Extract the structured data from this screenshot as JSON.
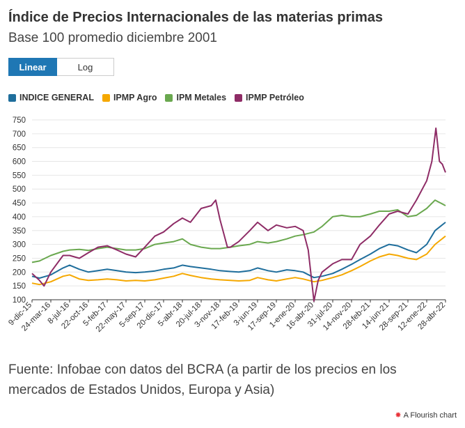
{
  "title": "Índice de Precios Internacionales de las materias primas",
  "subtitle": "Base 100 promedio diciembre 2001",
  "toggle": {
    "linear_label": "Linear",
    "log_label": "Log",
    "selected": "Linear"
  },
  "footnote": "Fuente: Infobae con datos del BCRA (a partir de los precios en los mercados de Estados Unidos, Europa y Asia)",
  "credit": {
    "label": "A Flourish chart",
    "logo_icon": "flourish-logo-icon"
  },
  "chart_data": {
    "type": "line",
    "ylim": [
      100,
      750
    ],
    "yticks": [
      100,
      150,
      200,
      250,
      300,
      350,
      400,
      450,
      500,
      550,
      600,
      650,
      700,
      750
    ],
    "x_tick_labels": [
      "9-dic-15",
      "24-mar-16",
      "8-jul-16",
      "22-oct-16",
      "5-feb-17",
      "22-may-17",
      "5-sep-17",
      "20-dic-17",
      "5-abr-18",
      "20-jul-18",
      "3-nov-18",
      "17-feb-19",
      "3-jun-19",
      "17-sep-19",
      "1-ene-20",
      "16-abr-20",
      "31-jul-20",
      "14-nov-20",
      "28-feb-21",
      "14-jun-21",
      "28-sep-21",
      "12-ene-22",
      "28-abr-22"
    ],
    "grid": true,
    "legend_position": "top-left",
    "series": [
      {
        "name": "INDICE GENERAL",
        "color": "#1f6e9c",
        "x": [
          "2015-12-09",
          "2016-01-20",
          "2016-03-24",
          "2016-06-01",
          "2016-07-08",
          "2016-09-01",
          "2016-10-22",
          "2016-12-15",
          "2017-02-05",
          "2017-04-01",
          "2017-05-22",
          "2017-07-15",
          "2017-09-05",
          "2017-11-01",
          "2017-12-20",
          "2018-02-15",
          "2018-04-05",
          "2018-05-20",
          "2018-07-20",
          "2018-09-15",
          "2018-11-03",
          "2019-01-01",
          "2019-02-17",
          "2019-04-20",
          "2019-06-03",
          "2019-08-01",
          "2019-09-17",
          "2019-11-15",
          "2020-01-01",
          "2020-02-15",
          "2020-04-16",
          "2020-06-01",
          "2020-07-31",
          "2020-09-20",
          "2020-11-14",
          "2021-01-01",
          "2021-02-28",
          "2021-04-20",
          "2021-06-14",
          "2021-08-01",
          "2021-09-28",
          "2021-11-15",
          "2022-01-12",
          "2022-02-28",
          "2022-04-28"
        ],
        "values": [
          185,
          178,
          190,
          215,
          225,
          210,
          200,
          205,
          210,
          205,
          200,
          198,
          200,
          204,
          210,
          215,
          225,
          220,
          215,
          210,
          205,
          202,
          200,
          205,
          215,
          205,
          200,
          208,
          205,
          200,
          180,
          185,
          195,
          210,
          228,
          245,
          265,
          285,
          300,
          295,
          280,
          270,
          300,
          350,
          380
        ]
      },
      {
        "name": "IPMP Agro",
        "color": "#f5a800",
        "x": [
          "2015-12-09",
          "2016-01-20",
          "2016-03-24",
          "2016-06-01",
          "2016-07-08",
          "2016-09-01",
          "2016-10-22",
          "2016-12-15",
          "2017-02-05",
          "2017-04-01",
          "2017-05-22",
          "2017-07-15",
          "2017-09-05",
          "2017-11-01",
          "2017-12-20",
          "2018-02-15",
          "2018-04-05",
          "2018-05-20",
          "2018-07-20",
          "2018-09-15",
          "2018-11-03",
          "2019-01-01",
          "2019-02-17",
          "2019-04-20",
          "2019-06-03",
          "2019-08-01",
          "2019-09-17",
          "2019-11-15",
          "2020-01-01",
          "2020-02-15",
          "2020-04-16",
          "2020-06-01",
          "2020-07-31",
          "2020-09-20",
          "2020-11-14",
          "2021-01-01",
          "2021-02-28",
          "2021-04-20",
          "2021-06-14",
          "2021-08-01",
          "2021-09-28",
          "2021-11-15",
          "2022-01-12",
          "2022-02-28",
          "2022-04-28"
        ],
        "values": [
          160,
          155,
          165,
          185,
          190,
          175,
          170,
          172,
          175,
          172,
          168,
          170,
          168,
          172,
          178,
          185,
          195,
          188,
          180,
          175,
          172,
          170,
          168,
          170,
          180,
          172,
          168,
          175,
          180,
          175,
          165,
          170,
          180,
          190,
          205,
          220,
          240,
          255,
          265,
          260,
          250,
          245,
          265,
          300,
          330
        ]
      },
      {
        "name": "IPM Metales",
        "color": "#6aa84f",
        "x": [
          "2015-12-09",
          "2016-01-20",
          "2016-03-24",
          "2016-06-01",
          "2016-07-08",
          "2016-09-01",
          "2016-10-22",
          "2016-12-15",
          "2017-02-05",
          "2017-04-01",
          "2017-05-22",
          "2017-07-15",
          "2017-09-05",
          "2017-11-01",
          "2017-12-20",
          "2018-02-15",
          "2018-04-05",
          "2018-05-20",
          "2018-07-20",
          "2018-09-15",
          "2018-11-03",
          "2019-01-01",
          "2019-02-17",
          "2019-04-20",
          "2019-06-03",
          "2019-08-01",
          "2019-09-17",
          "2019-11-15",
          "2020-01-01",
          "2020-02-15",
          "2020-04-16",
          "2020-06-01",
          "2020-07-31",
          "2020-09-20",
          "2020-11-14",
          "2021-01-01",
          "2021-02-28",
          "2021-04-20",
          "2021-06-14",
          "2021-08-01",
          "2021-09-28",
          "2021-11-15",
          "2022-01-12",
          "2022-02-28",
          "2022-04-28"
        ],
        "values": [
          235,
          240,
          260,
          275,
          280,
          282,
          278,
          285,
          290,
          285,
          280,
          280,
          285,
          300,
          305,
          310,
          320,
          300,
          290,
          285,
          285,
          290,
          295,
          300,
          310,
          305,
          310,
          320,
          330,
          335,
          345,
          365,
          400,
          405,
          400,
          400,
          410,
          420,
          420,
          425,
          400,
          405,
          430,
          460,
          440
        ]
      },
      {
        "name": "IPMP Petróleo",
        "color": "#8e2c66",
        "x": [
          "2015-12-09",
          "2016-01-20",
          "2016-02-15",
          "2016-03-24",
          "2016-06-01",
          "2016-07-08",
          "2016-09-01",
          "2016-10-22",
          "2016-12-15",
          "2017-02-05",
          "2017-04-01",
          "2017-05-22",
          "2017-07-15",
          "2017-09-05",
          "2017-11-01",
          "2017-12-20",
          "2018-02-15",
          "2018-04-05",
          "2018-05-20",
          "2018-07-20",
          "2018-09-15",
          "2018-10-10",
          "2018-11-03",
          "2018-12-15",
          "2019-01-01",
          "2019-02-17",
          "2019-04-20",
          "2019-06-03",
          "2019-08-01",
          "2019-09-17",
          "2019-11-15",
          "2020-01-01",
          "2020-02-15",
          "2020-03-15",
          "2020-04-16",
          "2020-05-10",
          "2020-06-01",
          "2020-07-31",
          "2020-09-20",
          "2020-11-14",
          "2021-01-01",
          "2021-02-28",
          "2021-04-20",
          "2021-06-14",
          "2021-08-01",
          "2021-09-28",
          "2021-11-15",
          "2022-01-12",
          "2022-02-10",
          "2022-03-05",
          "2022-03-25",
          "2022-04-10",
          "2022-04-28"
        ],
        "values": [
          195,
          170,
          150,
          200,
          260,
          260,
          250,
          270,
          290,
          295,
          280,
          265,
          255,
          290,
          330,
          345,
          375,
          395,
          380,
          430,
          440,
          460,
          390,
          290,
          290,
          310,
          350,
          380,
          350,
          370,
          360,
          365,
          350,
          280,
          95,
          170,
          200,
          230,
          245,
          245,
          300,
          330,
          370,
          410,
          420,
          410,
          460,
          530,
          600,
          720,
          600,
          590,
          560
        ]
      }
    ]
  }
}
